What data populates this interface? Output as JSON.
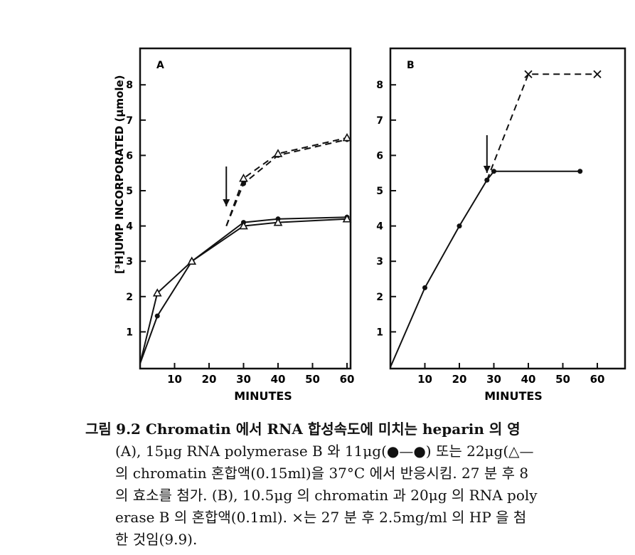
{
  "figure": {
    "y_axis_label": "[³H]UMP INCORPORATED (μmole)",
    "panels": [
      {
        "label": "A",
        "x_ticks": [
          "10",
          "20",
          "30",
          "40",
          "50",
          "60"
        ],
        "y_ticks": [
          "1",
          "2",
          "3",
          "4",
          "5",
          "6",
          "7",
          "8"
        ],
        "xlabel": "MINUTES"
      },
      {
        "label": "B",
        "x_ticks": [
          "10",
          "20",
          "30",
          "40",
          "50",
          "60"
        ],
        "y_ticks": [
          "1",
          "2",
          "3",
          "4",
          "5",
          "6",
          "7",
          "8"
        ],
        "xlabel": "MINUTES"
      }
    ]
  },
  "chart_data": [
    {
      "type": "line",
      "panel": "A",
      "xlabel": "MINUTES",
      "ylabel": "[³H]UMP INCORPORATED (μmole)",
      "xlim": [
        0,
        63
      ],
      "ylim": [
        0,
        9
      ],
      "annotations": [
        {
          "type": "arrow",
          "x": 25,
          "label": ""
        }
      ],
      "series": [
        {
          "marker": "circle",
          "style": "solid",
          "x": [
            0,
            5,
            15,
            30,
            40,
            60
          ],
          "y": [
            0.1,
            1.45,
            3.0,
            4.1,
            4.2,
            4.25
          ]
        },
        {
          "marker": "triangle",
          "style": "solid",
          "x": [
            0,
            5,
            15,
            30,
            40,
            60
          ],
          "y": [
            0.1,
            2.1,
            3.0,
            4.0,
            4.1,
            4.2
          ]
        },
        {
          "marker": "circle",
          "style": "dashed",
          "x": [
            25,
            30,
            40,
            60
          ],
          "y": [
            4.0,
            5.2,
            6.0,
            6.45
          ]
        },
        {
          "marker": "triangle",
          "style": "dashed",
          "x": [
            25,
            30,
            40,
            60
          ],
          "y": [
            4.0,
            5.35,
            6.05,
            6.5
          ]
        }
      ]
    },
    {
      "type": "line",
      "panel": "B",
      "xlabel": "MINUTES",
      "ylabel": "",
      "xlim": [
        0,
        63
      ],
      "ylim": [
        0,
        9
      ],
      "annotations": [
        {
          "type": "arrow",
          "x": 28,
          "label": ""
        }
      ],
      "series": [
        {
          "marker": "circle",
          "style": "solid",
          "x": [
            0,
            10,
            20,
            28,
            30,
            55
          ],
          "y": [
            0.0,
            2.25,
            4.0,
            5.3,
            5.55,
            5.55
          ]
        },
        {
          "marker": "cross",
          "style": "dashed",
          "x": [
            28,
            40,
            60
          ],
          "y": [
            5.3,
            8.3,
            8.3
          ]
        }
      ]
    }
  ],
  "caption": {
    "lines": [
      "9.2  Chromatin 에서  RNA  합성속도에  미치는  heparin 의  영",
      "(A),  15μg  RNA  polymerase  B 와  11μg(●—●)  또는  22μg(△—",
      "의  chromatin  혼합액(0.15ml)을  37°C 에서  반응시킴.  27 분  후  8",
      "의  효소를  첨가.  (B),  10.5μg 의  chromatin 과  20μg 의  RNA  poly",
      "erase  B 의  혼합액(0.1ml).  ×는  27 분  후  2.5mg/ml 의  HP 을  첨",
      "한  것임(9.9)."
    ],
    "prefix": "그림"
  }
}
